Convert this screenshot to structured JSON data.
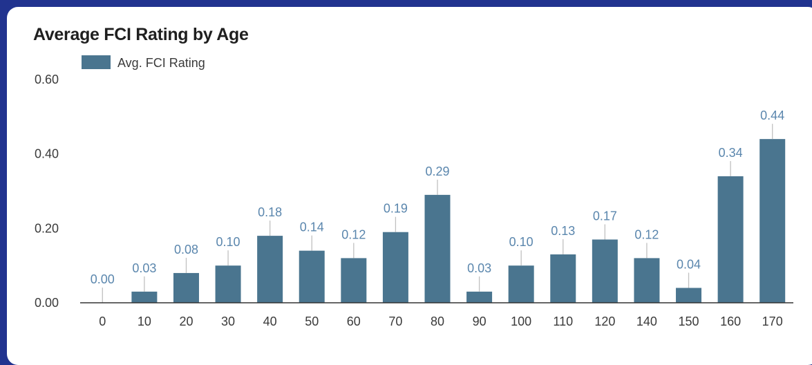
{
  "chart_data": {
    "type": "bar",
    "title": "Average FCI Rating by Age",
    "xlabel": "",
    "ylabel": "",
    "categories": [
      "0",
      "10",
      "20",
      "30",
      "40",
      "50",
      "60",
      "70",
      "80",
      "90",
      "100",
      "110",
      "120",
      "140",
      "150",
      "160",
      "170"
    ],
    "series": [
      {
        "name": "Avg. FCI Rating",
        "values": [
          0.0,
          0.03,
          0.08,
          0.1,
          0.18,
          0.14,
          0.12,
          0.19,
          0.29,
          0.03,
          0.1,
          0.13,
          0.17,
          0.12,
          0.04,
          0.34,
          0.44
        ],
        "labels": [
          "0.00",
          "0.03",
          "0.08",
          "0.10",
          "0.18",
          "0.14",
          "0.12",
          "0.19",
          "0.29",
          "0.03",
          "0.10",
          "0.13",
          "0.17",
          "0.12",
          "0.04",
          "0.34",
          "0.44"
        ]
      }
    ],
    "ylim": [
      0,
      0.6
    ],
    "yticks": [
      0,
      0.2,
      0.4,
      0.6
    ],
    "ytick_labels": [
      "0.00",
      "0.20",
      "0.40",
      "0.60"
    ],
    "grid": false,
    "legend_position": "top-left",
    "colors": {
      "bar": "#4a758f",
      "data_label": "#5a86ad",
      "axis": "#3a3a3a",
      "background": "#21338f"
    }
  }
}
